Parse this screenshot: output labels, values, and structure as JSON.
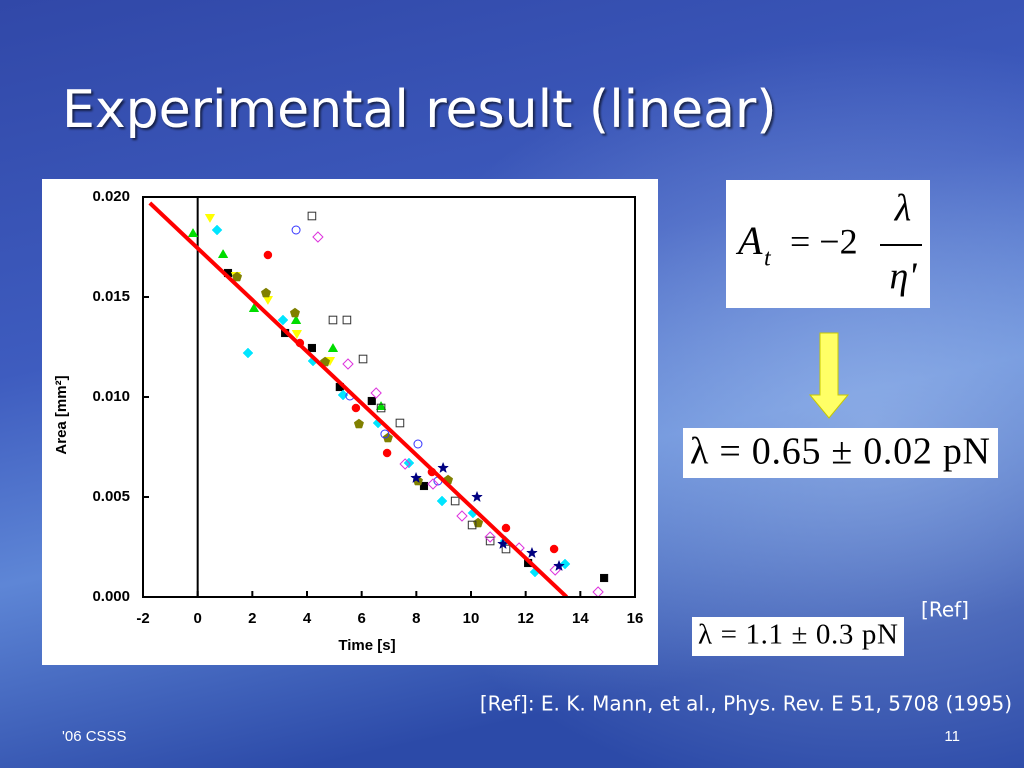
{
  "title": "Experimental result (linear)",
  "formula_1": {
    "lhs": "A",
    "sub": "t",
    "rhs": "= −2",
    "num": "λ",
    "den": "η'"
  },
  "formula_2": "λ = 0.65 ± 0.02 pN",
  "ref_tag": "[Ref]",
  "formula_3": "λ = 1.1 ± 0.3 pN",
  "reference": "[Ref]: E. K. Mann, et al., Phys. Rev. E 51, 5708 (1995)",
  "footer_left": "'06 CSSS",
  "footer_right": "11",
  "chart_data": {
    "type": "scatter",
    "x_label": "Time [s]",
    "y_label": "Area [mm²]",
    "xlim": [
      -2,
      16
    ],
    "xticks": [
      -2,
      0,
      2,
      4,
      6,
      8,
      10,
      12,
      14,
      16
    ],
    "ylim": [
      0,
      0.02
    ],
    "yticks": [
      {
        "value": 0,
        "label": "0.000"
      },
      {
        "value": 0.005,
        "label": "0.005"
      },
      {
        "value": 0.01,
        "label": "0.010"
      },
      {
        "value": 0.015,
        "label": "0.015"
      },
      {
        "value": 0.02,
        "label": "0.020"
      }
    ],
    "vline": 0,
    "fit": {
      "color": "#ff0000",
      "x": [
        -1.75,
        13.5
      ],
      "y": [
        0.0197,
        0
      ]
    },
    "series": [
      {
        "marker": "square",
        "filled": true,
        "color": "#000000",
        "x": [
          1.11,
          3.2,
          4.18,
          5.2,
          6.37,
          8.28,
          12.09,
          14.87
        ],
        "values": [
          0.0162,
          0.0132,
          0.01245,
          0.0105,
          0.0098,
          0.00555,
          0.0017,
          0.00095
        ]
      },
      {
        "marker": "circle",
        "filled": true,
        "color": "#ff0000",
        "x": [
          2.57,
          3.74,
          5.79,
          6.93,
          8.57,
          11.28,
          13.04
        ],
        "values": [
          0.0171,
          0.0127,
          0.00945,
          0.0072,
          0.00625,
          0.00345,
          0.0024
        ]
      },
      {
        "marker": "triangle-down",
        "filled": true,
        "color": "#ffff00",
        "x": [
          0.45,
          1.4,
          2.57,
          3.63,
          4.84
        ],
        "values": [
          0.019,
          0.0161,
          0.0149,
          0.0132,
          0.01185
        ]
      },
      {
        "marker": "triangle-up",
        "filled": true,
        "color": "#00dd00",
        "x": [
          -0.17,
          0.93,
          2.06,
          3.6,
          4.95,
          6.71
        ],
        "values": [
          0.01815,
          0.0171,
          0.0144,
          0.0138,
          0.0124,
          0.0095
        ]
      },
      {
        "marker": "diamond",
        "filled": true,
        "color": "#00e5ff",
        "x": [
          0.71,
          1.84,
          3.12,
          4.22,
          5.32,
          6.6,
          7.73,
          8.94,
          10.07,
          11.25,
          12.34,
          13.44
        ],
        "values": [
          0.01835,
          0.0122,
          0.01385,
          0.0118,
          0.0101,
          0.0087,
          0.0067,
          0.0048,
          0.0042,
          0.0028,
          0.00125,
          0.00165
        ]
      },
      {
        "marker": "pentagon",
        "filled": true,
        "color": "#808000",
        "x": [
          1.44,
          2.5,
          3.56,
          4.66,
          5.9,
          6.96,
          8.06,
          9.16,
          10.26
        ],
        "values": [
          0.016,
          0.0152,
          0.0142,
          0.01175,
          0.00865,
          0.00795,
          0.0058,
          0.00585,
          0.0037
        ]
      },
      {
        "marker": "square",
        "filled": false,
        "color": "#333333",
        "x": [
          4.18,
          4.95,
          5.46,
          6.05,
          6.71,
          7.4,
          9.42,
          10.04,
          10.7,
          11.28
        ],
        "values": [
          0.01905,
          0.01385,
          0.01385,
          0.0119,
          0.00945,
          0.0087,
          0.0048,
          0.0036,
          0.0028,
          0.0024
        ]
      },
      {
        "marker": "circle",
        "filled": false,
        "color": "#3333ff",
        "x": [
          3.6,
          5.57,
          6.85,
          8.06,
          8.79
        ],
        "values": [
          0.01835,
          0.01005,
          0.00815,
          0.00765,
          0.0058
        ]
      },
      {
        "marker": "diamond",
        "filled": false,
        "color": "#dd33dd",
        "x": [
          4.4,
          5.5,
          6.53,
          7.59,
          8.61,
          9.67,
          10.7,
          11.76,
          13.08,
          14.65
        ],
        "values": [
          0.018,
          0.01165,
          0.0102,
          0.00665,
          0.00565,
          0.00405,
          0.003,
          0.00245,
          0.00135,
          0.00025
        ]
      },
      {
        "marker": "star",
        "filled": true,
        "color": "#000080",
        "x": [
          7.99,
          8.98,
          10.22,
          11.17,
          12.23,
          13.22
        ],
        "values": [
          0.00595,
          0.00645,
          0.005,
          0.00265,
          0.0022,
          0.00155
        ]
      }
    ]
  }
}
